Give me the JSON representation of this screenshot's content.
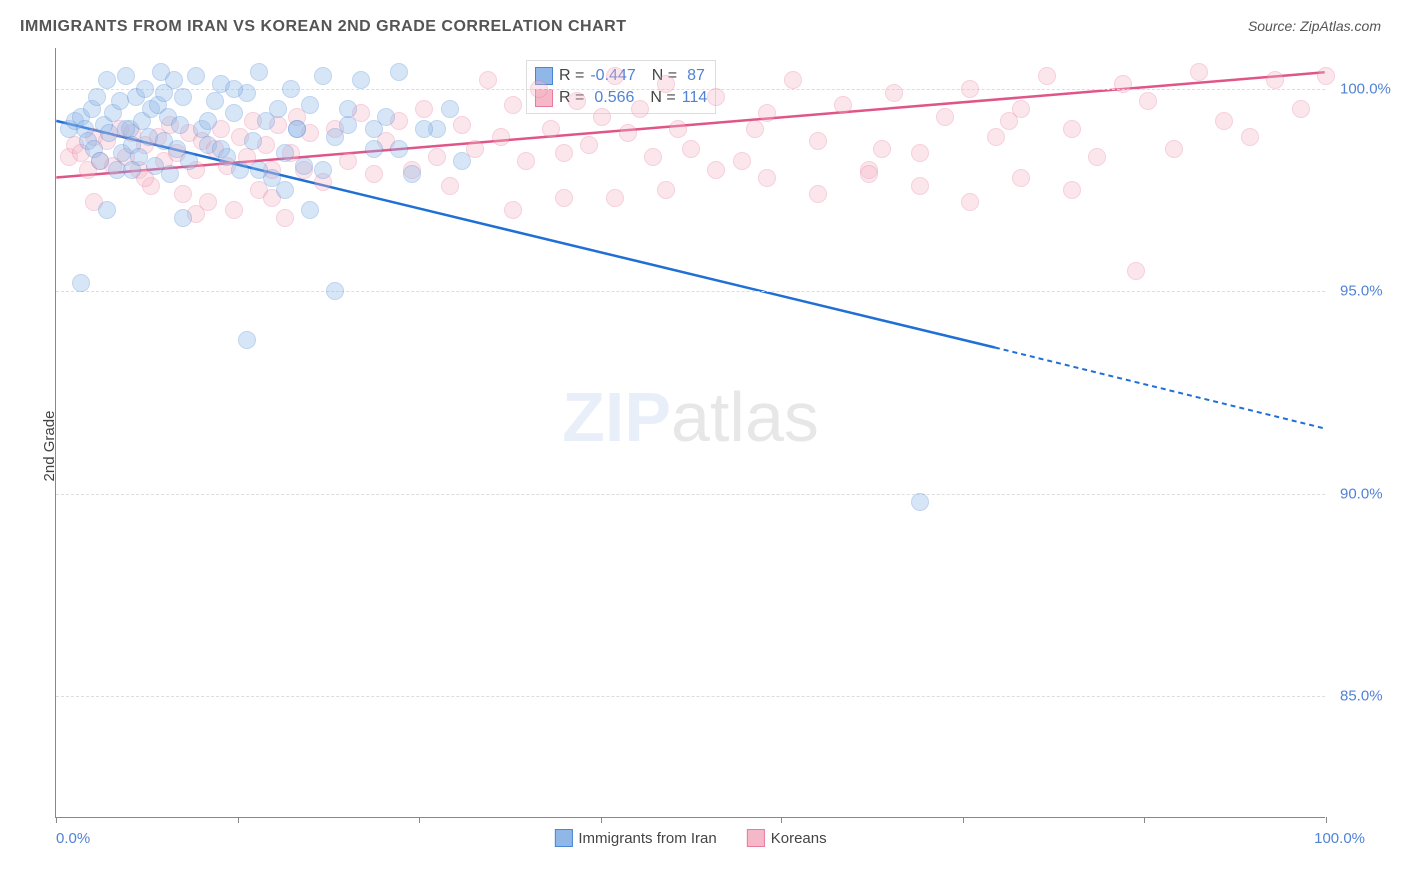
{
  "title": "IMMIGRANTS FROM IRAN VS KOREAN 2ND GRADE CORRELATION CHART",
  "source": "Source: ZipAtlas.com",
  "watermark_zip": "ZIP",
  "watermark_atlas": "atlas",
  "ylabel": "2nd Grade",
  "chart": {
    "type": "scatter",
    "xlim": [
      0,
      100
    ],
    "ylim": [
      82,
      101
    ],
    "ytick_labels": [
      "85.0%",
      "90.0%",
      "95.0%",
      "100.0%"
    ],
    "ytick_values": [
      85,
      90,
      95,
      100
    ],
    "xtick_values": [
      0,
      14.3,
      28.6,
      42.9,
      57.1,
      71.4,
      85.7,
      100
    ],
    "x_axis_label_left": "0.0%",
    "x_axis_label_right": "100.0%",
    "grid_color": "#dddddd",
    "background_color": "#ffffff",
    "axis_color": "#888888",
    "point_radius": 9,
    "point_opacity": 0.35,
    "series": [
      {
        "name": "Immigrants from Iran",
        "color_fill": "#8fb8e8",
        "color_stroke": "#4a86d4",
        "trend_color": "#1f6fd4",
        "trend": {
          "x1": 0,
          "y1": 99.2,
          "x2": 74,
          "y2": 93.6,
          "x2_dash": 100,
          "y2_dash": 91.6
        },
        "R_label": "R =",
        "R_value": "-0.447",
        "N_label": "N =",
        "N_value": "87",
        "points": [
          [
            1,
            99.0
          ],
          [
            1.5,
            99.2
          ],
          [
            2,
            99.3
          ],
          [
            2.3,
            99.0
          ],
          [
            2.5,
            98.7
          ],
          [
            2.8,
            99.5
          ],
          [
            3,
            98.5
          ],
          [
            3.2,
            99.8
          ],
          [
            3.5,
            98.2
          ],
          [
            3.8,
            99.1
          ],
          [
            4,
            100.2
          ],
          [
            4.2,
            98.9
          ],
          [
            4.5,
            99.4
          ],
          [
            4.8,
            98.0
          ],
          [
            5,
            99.7
          ],
          [
            5.2,
            98.4
          ],
          [
            5.5,
            100.3
          ],
          [
            5.8,
            99.0
          ],
          [
            6,
            98.6
          ],
          [
            6.3,
            99.8
          ],
          [
            6.5,
            98.3
          ],
          [
            6.8,
            99.2
          ],
          [
            7,
            100.0
          ],
          [
            7.3,
            98.8
          ],
          [
            7.5,
            99.5
          ],
          [
            7.8,
            98.1
          ],
          [
            8,
            99.6
          ],
          [
            8.3,
            100.4
          ],
          [
            8.5,
            98.7
          ],
          [
            8.8,
            99.3
          ],
          [
            9,
            97.9
          ],
          [
            9.3,
            100.2
          ],
          [
            9.5,
            98.5
          ],
          [
            9.8,
            99.1
          ],
          [
            10,
            99.8
          ],
          [
            10.5,
            98.2
          ],
          [
            11,
            100.3
          ],
          [
            11.5,
            99.0
          ],
          [
            12,
            98.6
          ],
          [
            12.5,
            99.7
          ],
          [
            13,
            100.1
          ],
          [
            13.5,
            98.3
          ],
          [
            14,
            99.4
          ],
          [
            14.5,
            98.0
          ],
          [
            15,
            99.9
          ],
          [
            15.5,
            98.7
          ],
          [
            16,
            100.4
          ],
          [
            16.5,
            99.2
          ],
          [
            17,
            97.8
          ],
          [
            17.5,
            99.5
          ],
          [
            18,
            98.4
          ],
          [
            18.5,
            100.0
          ],
          [
            19,
            99.0
          ],
          [
            19.5,
            98.1
          ],
          [
            20,
            99.6
          ],
          [
            21,
            100.3
          ],
          [
            22,
            98.8
          ],
          [
            23,
            99.1
          ],
          [
            24,
            100.2
          ],
          [
            25,
            98.5
          ],
          [
            26,
            99.3
          ],
          [
            27,
            100.4
          ],
          [
            28,
            97.9
          ],
          [
            30,
            99.0
          ],
          [
            32,
            98.2
          ],
          [
            2,
            95.2
          ],
          [
            4,
            97.0
          ],
          [
            8.5,
            99.9
          ],
          [
            10,
            96.8
          ],
          [
            12,
            99.2
          ],
          [
            15,
            93.8
          ],
          [
            18,
            97.5
          ],
          [
            20,
            97.0
          ],
          [
            5.5,
            99.0
          ],
          [
            6,
            98.0
          ],
          [
            13,
            98.5
          ],
          [
            14,
            100.0
          ],
          [
            16,
            98.0
          ],
          [
            19,
            99.0
          ],
          [
            21,
            98.0
          ],
          [
            23,
            99.5
          ],
          [
            25,
            99.0
          ],
          [
            27,
            98.5
          ],
          [
            29,
            99.0
          ],
          [
            31,
            99.5
          ],
          [
            22,
            95.0
          ],
          [
            68,
            89.8
          ]
        ]
      },
      {
        "name": "Koreans",
        "color_fill": "#f5b8c9",
        "color_stroke": "#e87a9e",
        "trend_color": "#e05588",
        "trend": {
          "x1": 0,
          "y1": 97.8,
          "x2": 100,
          "y2": 100.4
        },
        "R_label": "R =",
        "R_value": "0.566",
        "N_label": "N =",
        "N_value": "114",
        "points": [
          [
            1,
            98.3
          ],
          [
            1.5,
            98.6
          ],
          [
            2,
            98.4
          ],
          [
            2.5,
            98.0
          ],
          [
            3,
            98.8
          ],
          [
            3.5,
            98.2
          ],
          [
            4,
            98.7
          ],
          [
            4.5,
            98.1
          ],
          [
            5,
            99.0
          ],
          [
            5.5,
            98.3
          ],
          [
            6,
            98.9
          ],
          [
            6.5,
            98.0
          ],
          [
            7,
            98.6
          ],
          [
            7.5,
            97.6
          ],
          [
            8,
            98.8
          ],
          [
            8.5,
            98.2
          ],
          [
            9,
            99.1
          ],
          [
            9.5,
            98.4
          ],
          [
            10,
            97.4
          ],
          [
            10.5,
            98.9
          ],
          [
            11,
            98.0
          ],
          [
            11.5,
            98.7
          ],
          [
            12,
            97.2
          ],
          [
            12.5,
            98.5
          ],
          [
            13,
            99.0
          ],
          [
            13.5,
            98.1
          ],
          [
            14,
            97.0
          ],
          [
            14.5,
            98.8
          ],
          [
            15,
            98.3
          ],
          [
            15.5,
            99.2
          ],
          [
            16,
            97.5
          ],
          [
            16.5,
            98.6
          ],
          [
            17,
            98.0
          ],
          [
            17.5,
            99.1
          ],
          [
            18,
            96.8
          ],
          [
            18.5,
            98.4
          ],
          [
            19,
            99.3
          ],
          [
            19.5,
            98.0
          ],
          [
            20,
            98.9
          ],
          [
            21,
            97.7
          ],
          [
            22,
            99.0
          ],
          [
            23,
            98.2
          ],
          [
            24,
            99.4
          ],
          [
            25,
            97.9
          ],
          [
            26,
            98.7
          ],
          [
            27,
            99.2
          ],
          [
            28,
            98.0
          ],
          [
            29,
            99.5
          ],
          [
            30,
            98.3
          ],
          [
            31,
            97.6
          ],
          [
            32,
            99.1
          ],
          [
            33,
            98.5
          ],
          [
            34,
            100.2
          ],
          [
            35,
            98.8
          ],
          [
            36,
            99.6
          ],
          [
            37,
            98.2
          ],
          [
            38,
            100.0
          ],
          [
            39,
            99.0
          ],
          [
            40,
            98.4
          ],
          [
            41,
            99.7
          ],
          [
            42,
            98.6
          ],
          [
            43,
            99.3
          ],
          [
            44,
            100.3
          ],
          [
            45,
            98.9
          ],
          [
            46,
            99.5
          ],
          [
            47,
            98.3
          ],
          [
            48,
            100.1
          ],
          [
            49,
            99.0
          ],
          [
            50,
            98.5
          ],
          [
            52,
            99.8
          ],
          [
            54,
            98.2
          ],
          [
            56,
            99.4
          ],
          [
            58,
            100.2
          ],
          [
            60,
            98.7
          ],
          [
            62,
            99.6
          ],
          [
            64,
            98.0
          ],
          [
            66,
            99.9
          ],
          [
            68,
            98.4
          ],
          [
            70,
            99.3
          ],
          [
            72,
            100.0
          ],
          [
            74,
            98.8
          ],
          [
            76,
            99.5
          ],
          [
            78,
            100.3
          ],
          [
            80,
            99.0
          ],
          [
            82,
            98.3
          ],
          [
            84,
            100.1
          ],
          [
            86,
            99.7
          ],
          [
            88,
            98.5
          ],
          [
            90,
            100.4
          ],
          [
            92,
            99.2
          ],
          [
            94,
            98.8
          ],
          [
            96,
            100.2
          ],
          [
            98,
            99.5
          ],
          [
            100,
            100.3
          ],
          [
            44,
            97.3
          ],
          [
            48,
            97.5
          ],
          [
            52,
            98.0
          ],
          [
            56,
            97.8
          ],
          [
            60,
            97.4
          ],
          [
            64,
            97.9
          ],
          [
            68,
            97.6
          ],
          [
            72,
            97.2
          ],
          [
            76,
            97.8
          ],
          [
            80,
            97.5
          ],
          [
            36,
            97.0
          ],
          [
            40,
            97.3
          ],
          [
            55,
            99.0
          ],
          [
            65,
            98.5
          ],
          [
            75,
            99.2
          ],
          [
            85,
            95.5
          ],
          [
            3,
            97.2
          ],
          [
            7,
            97.8
          ],
          [
            11,
            96.9
          ],
          [
            17,
            97.3
          ]
        ]
      }
    ]
  },
  "legend": {
    "series1_label": "Immigrants from Iran",
    "series2_label": "Koreans"
  }
}
